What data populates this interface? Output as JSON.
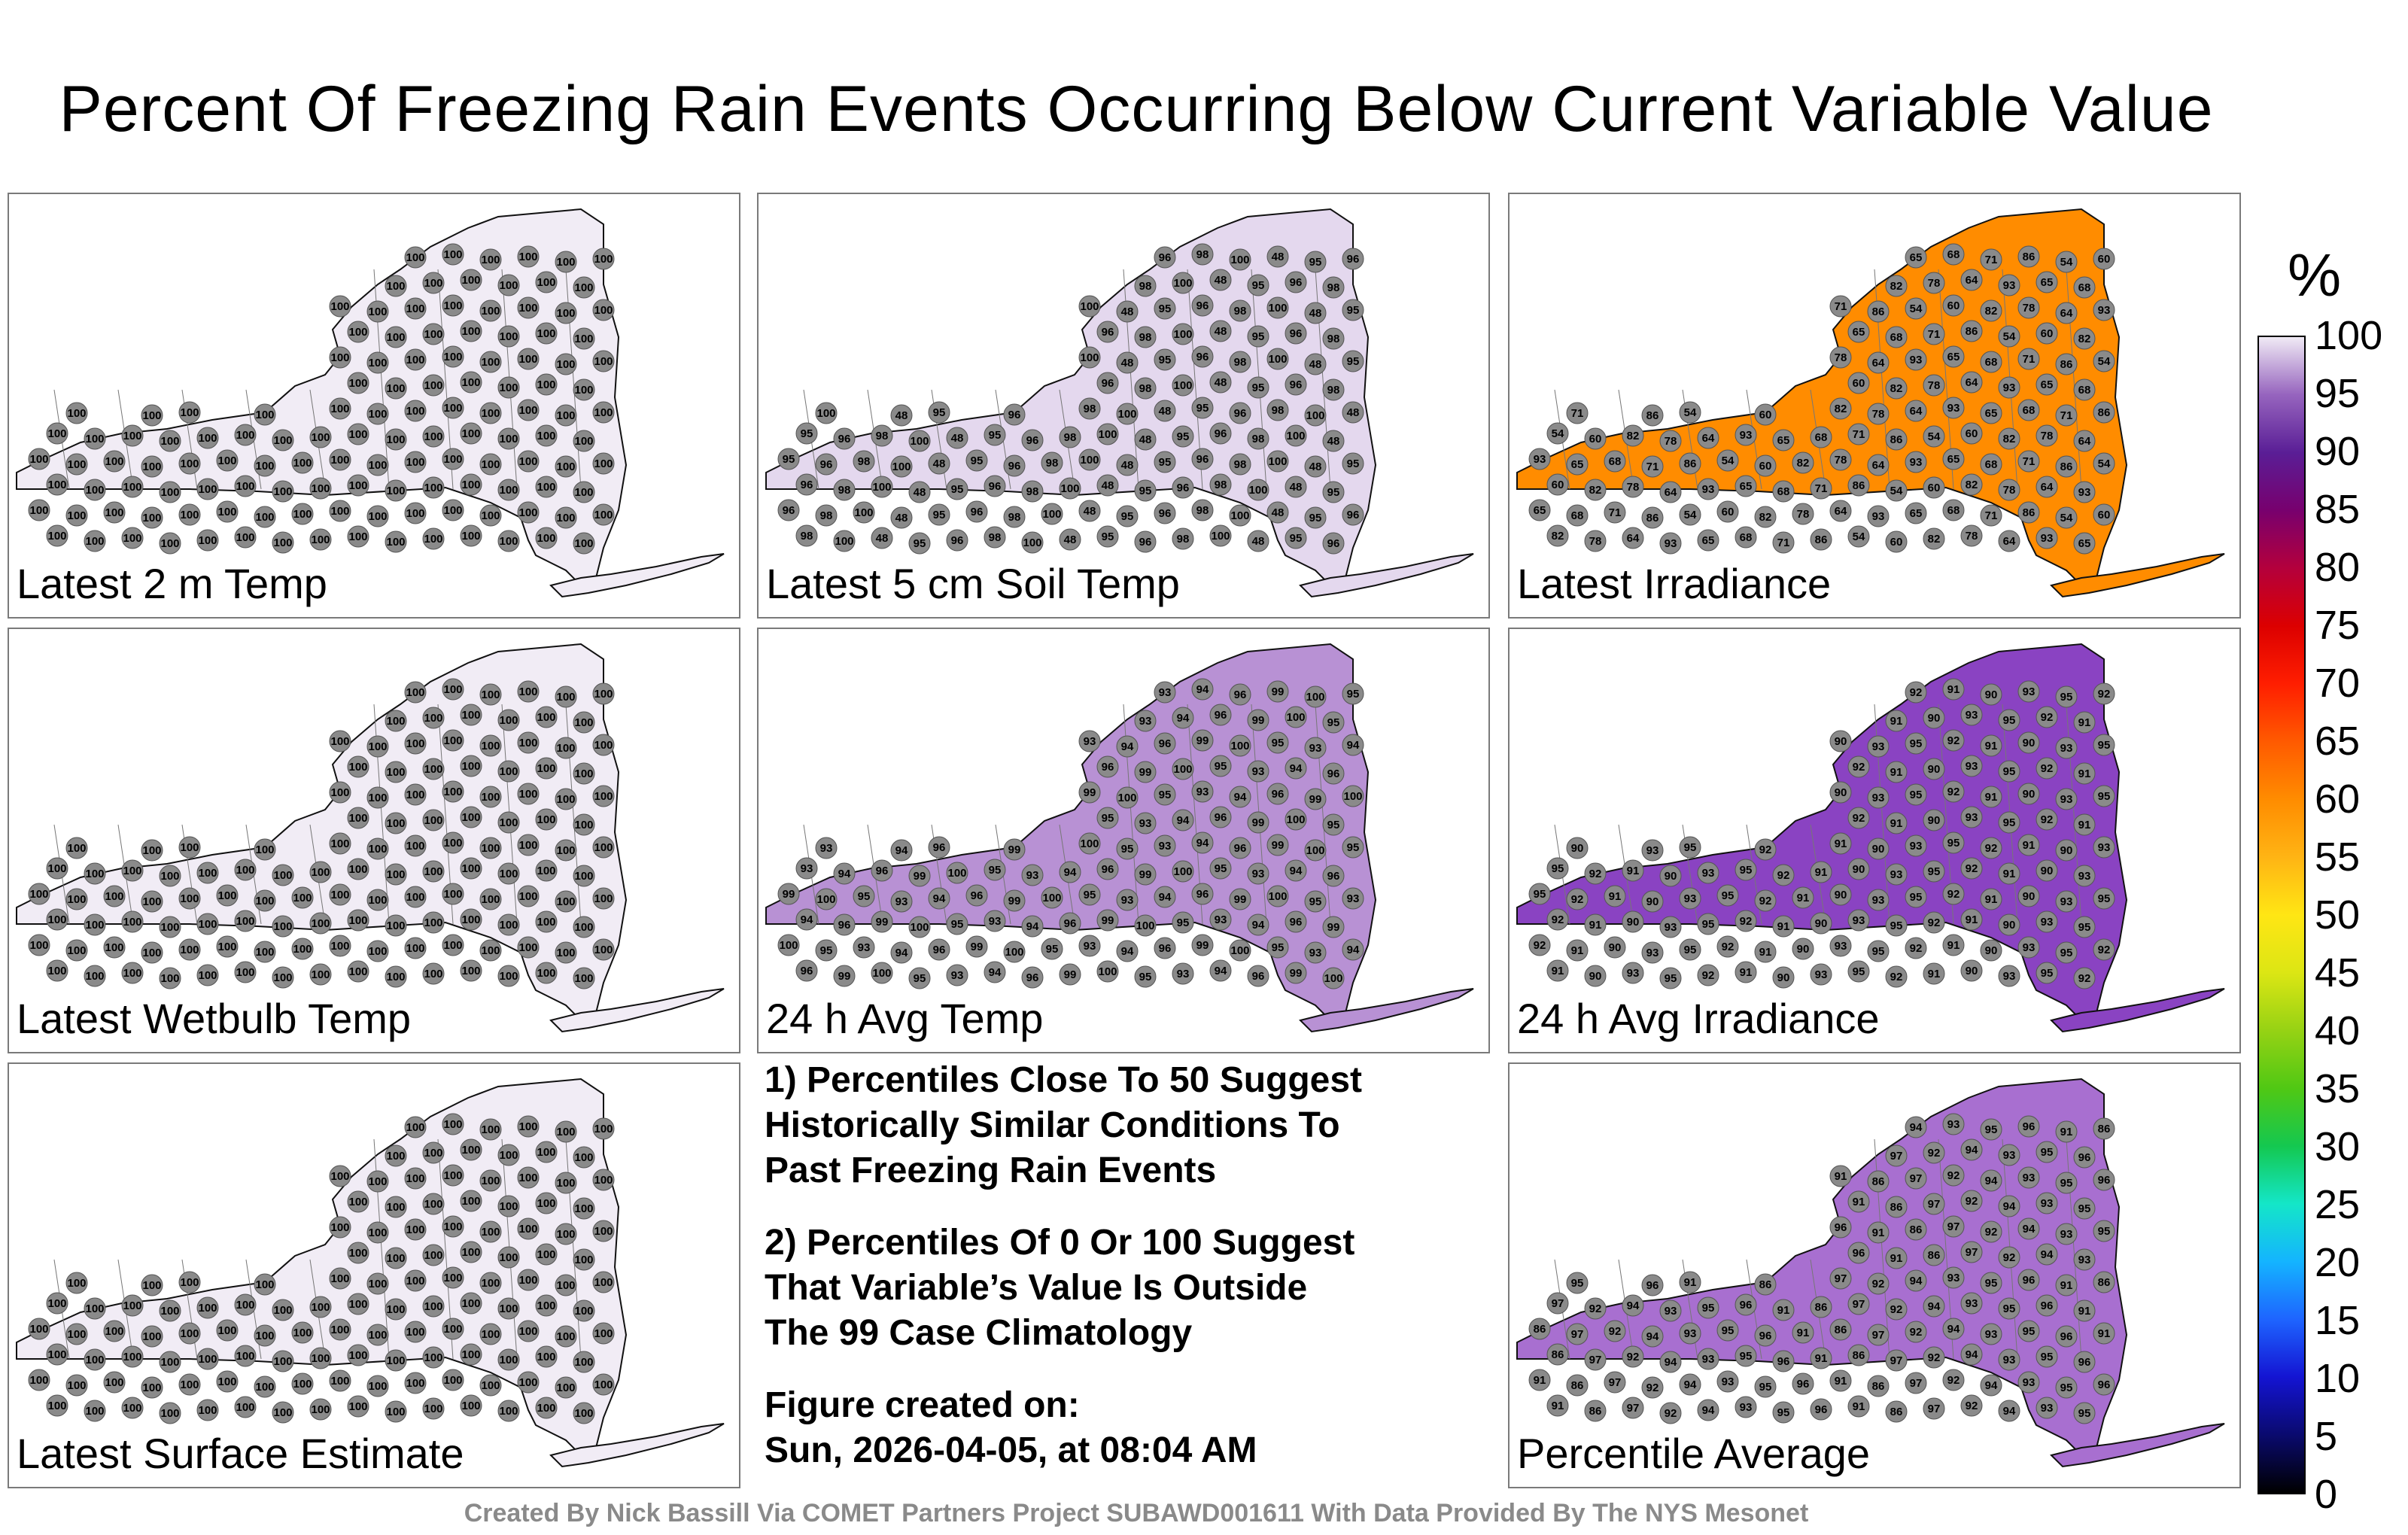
{
  "title": "Percent Of Freezing Rain Events Occurring Below Current Variable Value",
  "panels": [
    {
      "label": "Latest 2 m Temp",
      "fill": "#f1ecf5",
      "values": [
        "100"
      ]
    },
    {
      "label": "Latest 5 cm Soil Temp",
      "fill": "#e4d8ee",
      "values": [
        "96",
        "98",
        "100",
        "48",
        "95"
      ]
    },
    {
      "label": "Latest Irradiance",
      "fill": "#ff8c00",
      "values": [
        "65",
        "68",
        "71",
        "86",
        "54",
        "60",
        "82",
        "78",
        "64",
        "93"
      ]
    },
    {
      "label": "Latest Wetbulb Temp",
      "fill": "#f1ecf5",
      "values": [
        "100"
      ]
    },
    {
      "label": "24 h Avg Temp",
      "fill": "#b891d4",
      "values": [
        "93",
        "94",
        "96",
        "99",
        "100",
        "95"
      ]
    },
    {
      "label": "24 h Avg Irradiance",
      "fill": "#8a43c2",
      "values": [
        "92",
        "91",
        "90",
        "93",
        "95"
      ]
    },
    {
      "label": "Latest Surface Estimate",
      "fill": "#f1ecf5",
      "values": [
        "100"
      ]
    },
    {
      "label": "Percentile Average",
      "fill": "#a86fd0",
      "values": [
        "94",
        "93",
        "95",
        "96",
        "91",
        "86",
        "97",
        "92"
      ]
    }
  ],
  "notes": [
    "1) Percentiles Close To 50 Suggest\nHistorically Similar Conditions To\nPast Freezing Rain Events",
    "2) Percentiles Of 0 Or 100 Suggest\nThat Variable’s Value Is Outside\nThe 99 Case Climatology",
    "Figure created on:\nSun, 2026-04-05, at 08:04 AM"
  ],
  "colorbar": {
    "unit": "%",
    "ticks": [
      "100",
      "95",
      "90",
      "85",
      "80",
      "75",
      "70",
      "65",
      "60",
      "55",
      "50",
      "45",
      "40",
      "35",
      "30",
      "25",
      "20",
      "15",
      "10",
      "5",
      "0"
    ]
  },
  "footer": "Created By Nick Bassill Via COMET Partners Project SUBAWD001611 With Data Provided By The NYS Mesonet"
}
